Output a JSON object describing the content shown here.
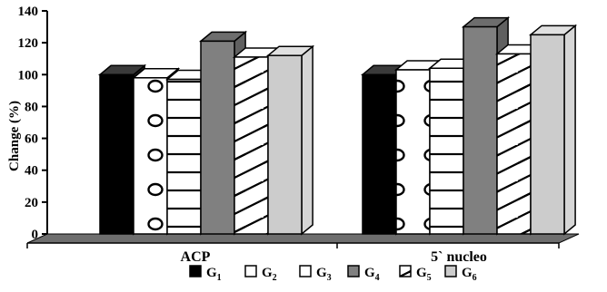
{
  "chart_data": {
    "type": "bar",
    "title": "",
    "xlabel": "",
    "ylabel": "Change (%)",
    "ylim": [
      0,
      140
    ],
    "yticks": [
      "0",
      "20",
      "40",
      "60",
      "80",
      "100",
      "120",
      "140"
    ],
    "grid": false,
    "legend_position": "bottom",
    "categories": [
      "ACP",
      "5` nucleo"
    ],
    "series": [
      {
        "name": "G1",
        "label_base": "G",
        "label_sub": "1",
        "pattern": "solid-black",
        "values": [
          100,
          100
        ]
      },
      {
        "name": "G2",
        "label_base": "G",
        "label_sub": "2",
        "pattern": "circles",
        "values": [
          98,
          103
        ]
      },
      {
        "name": "G3",
        "label_base": "G",
        "label_sub": "3",
        "pattern": "horizontal-lines",
        "values": [
          97,
          104
        ]
      },
      {
        "name": "G4",
        "label_base": "G",
        "label_sub": "4",
        "pattern": "solid-darkgray",
        "values": [
          121,
          130
        ]
      },
      {
        "name": "G5",
        "label_base": "G",
        "label_sub": "5",
        "pattern": "diagonal-lines",
        "values": [
          111,
          113
        ]
      },
      {
        "name": "G6",
        "label_base": "G",
        "label_sub": "6",
        "pattern": "solid-lightgray",
        "values": [
          112,
          125
        ]
      }
    ]
  },
  "colors": {
    "solid_black": "#000000",
    "solid_darkgray": "#808080",
    "solid_lightgray": "#cccccc",
    "floor": "#6e6e6e"
  }
}
